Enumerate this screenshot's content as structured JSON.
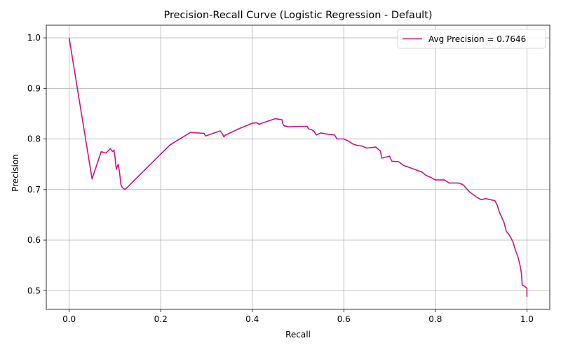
{
  "chart_data": {
    "type": "line",
    "title": "Precision-Recall Curve (Logistic Regression - Default)",
    "xlabel": "Recall",
    "ylabel": "Precision",
    "xlim": [
      -0.05,
      1.05
    ],
    "ylim": [
      0.463,
      1.025
    ],
    "xticks": [
      0.0,
      0.2,
      0.4,
      0.6,
      0.8,
      1.0
    ],
    "xtick_labels": [
      "0.0",
      "0.2",
      "0.4",
      "0.6",
      "0.8",
      "1.0"
    ],
    "yticks": [
      0.5,
      0.6,
      0.7,
      0.8,
      0.9,
      1.0
    ],
    "ytick_labels": [
      "0.5",
      "0.6",
      "0.7",
      "0.8",
      "0.9",
      "1.0"
    ],
    "grid": true,
    "legend_position": "upper-right",
    "series": [
      {
        "name": "Avg Precision = 0.7646",
        "color": "#c71585",
        "x": [
          0.0,
          0.05,
          0.07,
          0.08,
          0.09,
          0.095,
          0.098,
          0.1,
          0.103,
          0.107,
          0.11,
          0.113,
          0.116,
          0.122,
          0.22,
          0.265,
          0.295,
          0.298,
          0.33,
          0.335,
          0.338,
          0.34,
          0.37,
          0.4,
          0.41,
          0.415,
          0.42,
          0.45,
          0.465,
          0.467,
          0.47,
          0.48,
          0.5,
          0.52,
          0.523,
          0.53,
          0.535,
          0.54,
          0.55,
          0.56,
          0.58,
          0.585,
          0.6,
          0.61,
          0.62,
          0.63,
          0.64,
          0.65,
          0.67,
          0.68,
          0.683,
          0.7,
          0.705,
          0.72,
          0.73,
          0.76,
          0.77,
          0.78,
          0.79,
          0.8,
          0.82,
          0.83,
          0.85,
          0.86,
          0.87,
          0.875,
          0.89,
          0.9,
          0.91,
          0.92,
          0.93,
          0.935,
          0.94,
          0.945,
          0.95,
          0.955,
          0.96,
          0.965,
          0.97,
          0.975,
          0.98,
          0.985,
          0.988,
          0.99,
          0.993,
          1.0,
          1.0
        ],
        "y": [
          1.0,
          0.721,
          0.775,
          0.772,
          0.781,
          0.775,
          0.778,
          0.765,
          0.74,
          0.75,
          0.735,
          0.71,
          0.704,
          0.7,
          0.788,
          0.813,
          0.811,
          0.806,
          0.816,
          0.81,
          0.804,
          0.807,
          0.82,
          0.831,
          0.832,
          0.829,
          0.831,
          0.84,
          0.838,
          0.829,
          0.826,
          0.824,
          0.825,
          0.825,
          0.82,
          0.818,
          0.815,
          0.808,
          0.812,
          0.81,
          0.808,
          0.8,
          0.8,
          0.796,
          0.79,
          0.787,
          0.786,
          0.782,
          0.784,
          0.776,
          0.762,
          0.766,
          0.756,
          0.755,
          0.748,
          0.738,
          0.735,
          0.728,
          0.724,
          0.719,
          0.719,
          0.713,
          0.713,
          0.71,
          0.7,
          0.695,
          0.685,
          0.68,
          0.682,
          0.68,
          0.678,
          0.67,
          0.655,
          0.645,
          0.635,
          0.617,
          0.612,
          0.605,
          0.595,
          0.58,
          0.568,
          0.55,
          0.535,
          0.51,
          0.51,
          0.505,
          0.488
        ]
      }
    ]
  }
}
